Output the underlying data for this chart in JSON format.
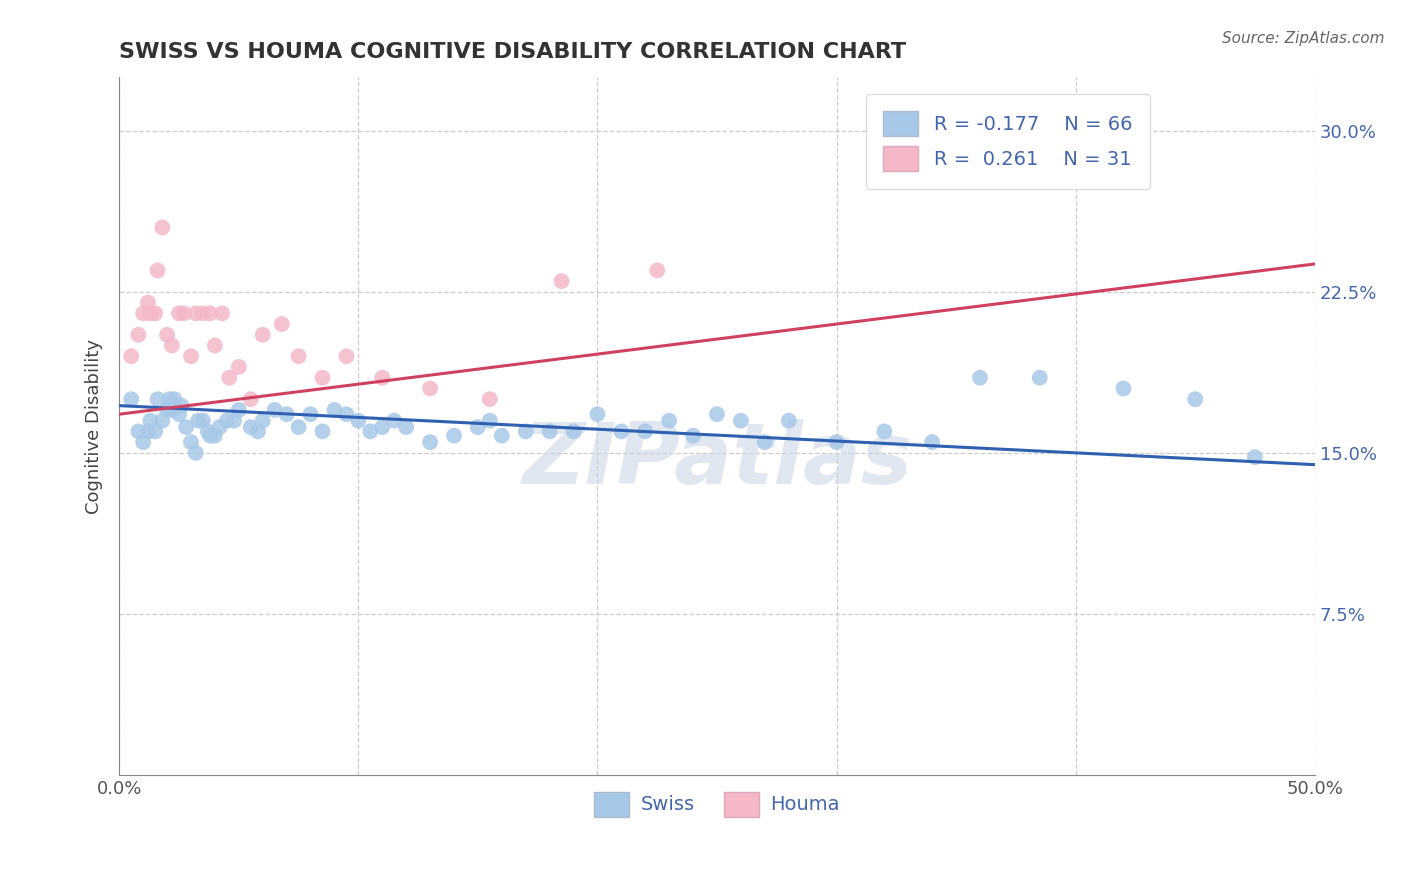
{
  "title": "SWISS VS HOUMA COGNITIVE DISABILITY CORRELATION CHART",
  "source": "Source: ZipAtlas.com",
  "ylabel": "Cognitive Disability",
  "xlim": [
    0.0,
    0.5
  ],
  "ylim": [
    0.0,
    0.325
  ],
  "xticks": [
    0.0,
    0.1,
    0.2,
    0.3,
    0.4,
    0.5
  ],
  "xticklabels": [
    "0.0%",
    "",
    "",
    "",
    "",
    "50.0%"
  ],
  "yticks": [
    0.075,
    0.15,
    0.225,
    0.3
  ],
  "yticklabels": [
    "7.5%",
    "15.0%",
    "22.5%",
    "30.0%"
  ],
  "swiss_color": "#a8c8e8",
  "houma_color": "#f4b8c8",
  "swiss_line_color": "#3060b0",
  "houma_line_color": "#d04060",
  "swiss_R": -0.177,
  "swiss_N": 66,
  "houma_R": 0.261,
  "houma_N": 31,
  "tick_color": "#4466aa",
  "watermark_color": "#ccd8e8",
  "swiss_x": [
    0.005,
    0.008,
    0.01,
    0.012,
    0.013,
    0.015,
    0.016,
    0.018,
    0.02,
    0.021,
    0.022,
    0.023,
    0.025,
    0.026,
    0.028,
    0.03,
    0.032,
    0.033,
    0.035,
    0.037,
    0.038,
    0.04,
    0.042,
    0.045,
    0.048,
    0.05,
    0.055,
    0.058,
    0.06,
    0.065,
    0.07,
    0.075,
    0.08,
    0.085,
    0.09,
    0.095,
    0.1,
    0.105,
    0.11,
    0.115,
    0.12,
    0.13,
    0.14,
    0.15,
    0.155,
    0.16,
    0.17,
    0.18,
    0.19,
    0.2,
    0.21,
    0.22,
    0.23,
    0.24,
    0.25,
    0.26,
    0.27,
    0.28,
    0.3,
    0.32,
    0.34,
    0.36,
    0.385,
    0.42,
    0.45,
    0.475
  ],
  "swiss_y": [
    0.175,
    0.16,
    0.155,
    0.16,
    0.165,
    0.16,
    0.175,
    0.165,
    0.17,
    0.175,
    0.17,
    0.175,
    0.168,
    0.172,
    0.162,
    0.155,
    0.15,
    0.165,
    0.165,
    0.16,
    0.158,
    0.158,
    0.162,
    0.165,
    0.165,
    0.17,
    0.162,
    0.16,
    0.165,
    0.17,
    0.168,
    0.162,
    0.168,
    0.16,
    0.17,
    0.168,
    0.165,
    0.16,
    0.162,
    0.165,
    0.162,
    0.155,
    0.158,
    0.162,
    0.165,
    0.158,
    0.16,
    0.16,
    0.16,
    0.168,
    0.16,
    0.16,
    0.165,
    0.158,
    0.168,
    0.165,
    0.155,
    0.165,
    0.155,
    0.16,
    0.155,
    0.185,
    0.185,
    0.18,
    0.175,
    0.148
  ],
  "houma_x": [
    0.005,
    0.008,
    0.01,
    0.012,
    0.013,
    0.015,
    0.016,
    0.018,
    0.02,
    0.022,
    0.025,
    0.027,
    0.03,
    0.032,
    0.035,
    0.038,
    0.04,
    0.043,
    0.046,
    0.05,
    0.055,
    0.06,
    0.068,
    0.075,
    0.085,
    0.095,
    0.11,
    0.13,
    0.155,
    0.185,
    0.225
  ],
  "houma_y": [
    0.195,
    0.205,
    0.215,
    0.22,
    0.215,
    0.215,
    0.235,
    0.255,
    0.205,
    0.2,
    0.215,
    0.215,
    0.195,
    0.215,
    0.215,
    0.215,
    0.2,
    0.215,
    0.185,
    0.19,
    0.175,
    0.205,
    0.21,
    0.195,
    0.185,
    0.195,
    0.185,
    0.18,
    0.175,
    0.23,
    0.235
  ]
}
